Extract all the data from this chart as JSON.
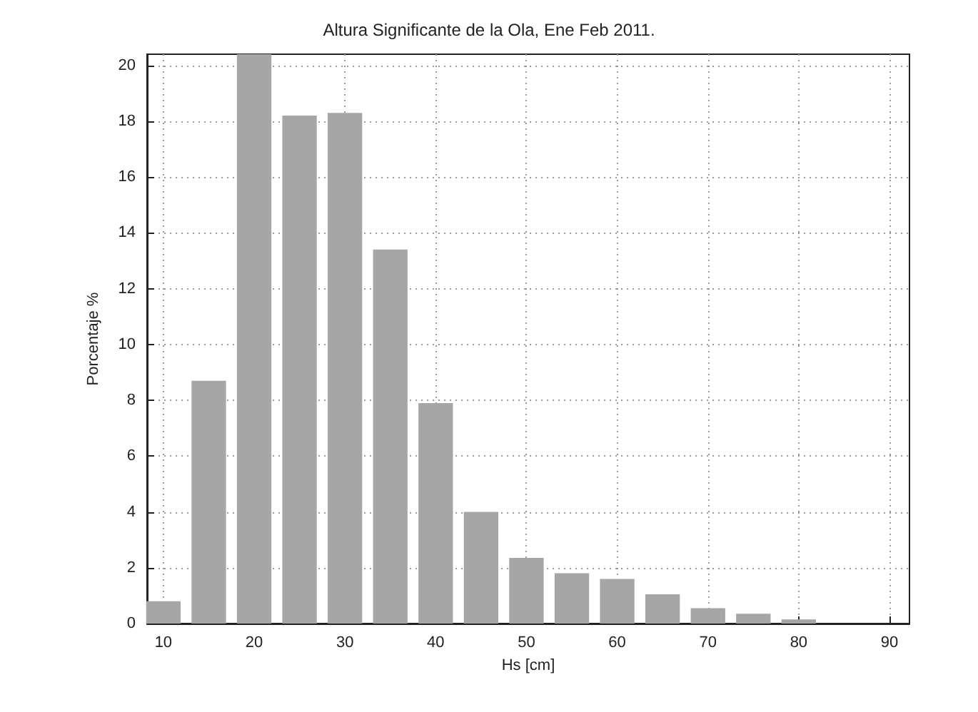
{
  "chart_data": {
    "type": "bar",
    "title": "Altura Significante de la Ola, Ene Feb 2011.",
    "xlabel": "Hs [cm]",
    "ylabel": "Porcentaje %",
    "x": [
      10,
      15,
      20,
      25,
      30,
      35,
      40,
      45,
      50,
      55,
      60,
      65,
      70,
      75,
      80
    ],
    "values": [
      0.8,
      8.7,
      20.4,
      18.2,
      18.3,
      13.4,
      7.9,
      4.0,
      2.35,
      1.8,
      1.6,
      1.05,
      0.55,
      0.35,
      0.15
    ],
    "color": "#a6a6a6",
    "xlim": [
      8.2,
      92.2
    ],
    "xticks": [
      10,
      20,
      30,
      40,
      50,
      60,
      70,
      80,
      90
    ],
    "ylim": [
      0,
      20.4
    ],
    "yticks": [
      0,
      2,
      4,
      6,
      8,
      10,
      12,
      14,
      16,
      18,
      20
    ],
    "grid": true
  }
}
